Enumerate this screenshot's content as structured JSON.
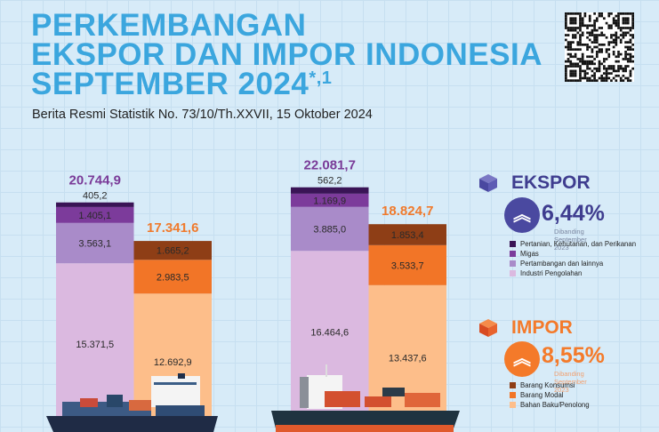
{
  "header": {
    "title_lines": [
      "PERKEMBANGAN",
      "EKSPOR DAN IMPOR INDONESIA",
      "SEPTEMBER 2024"
    ],
    "title_suffix": "*,1",
    "subtitle": "Berita Resmi Statistik No. 73/10/Th.XXVII, 15 Oktober 2024"
  },
  "colors": {
    "title": "#3ba6de",
    "export_total": "#7a3b98",
    "import_total": "#f07a2c",
    "ekspor_accent": "#3f3d8f",
    "impor_accent": "#f47a2a"
  },
  "ekspor": {
    "label": "EKSPOR",
    "change": "6,44%",
    "compare": "Dibanding September 2023",
    "direction": "up"
  },
  "impor": {
    "label": "IMPOR",
    "change": "8,55%",
    "compare": "Dibanding September 2023",
    "direction": "up"
  },
  "chart_data": {
    "type": "stacked-bar",
    "unit": "",
    "groups": [
      {
        "bars": [
          {
            "kind": "ekspor",
            "total": "20.744,9",
            "segments": [
              {
                "name": "Industri Pengolahan",
                "value": 15371.5,
                "label": "15.371,5",
                "color": "#dbb9e0"
              },
              {
                "name": "Pertambangan dan lainnya",
                "value": 3563.1,
                "label": "3.563,1",
                "color": "#a98bc9"
              },
              {
                "name": "Migas",
                "value": 1405.1,
                "label": "1.405,1",
                "color": "#7c3b9b"
              },
              {
                "name": "Pertanian, Kehutanan, dan Perikanan",
                "value": 405.2,
                "label": "405,2",
                "color": "#3a1456"
              }
            ]
          },
          {
            "kind": "impor",
            "total": "17.341,6",
            "segments": [
              {
                "name": "Bahan Baku/Penolong",
                "value": 12692.9,
                "label": "12.692,9",
                "color": "#fdbe8a"
              },
              {
                "name": "Barang Modal",
                "value": 2983.5,
                "label": "2.983,5",
                "color": "#f27527"
              },
              {
                "name": "Barang Konsumsi",
                "value": 1665.2,
                "label": "1.665,2",
                "color": "#8e3e16"
              }
            ]
          }
        ]
      },
      {
        "bars": [
          {
            "kind": "ekspor",
            "total": "22.081,7",
            "segments": [
              {
                "name": "Industri Pengolahan",
                "value": 16464.6,
                "label": "16.464,6",
                "color": "#dbb9e0"
              },
              {
                "name": "Pertambangan dan lainnya",
                "value": 3885.0,
                "label": "3.885,0",
                "color": "#a98bc9"
              },
              {
                "name": "Migas",
                "value": 1169.9,
                "label": "1.169,9",
                "color": "#7c3b9b"
              },
              {
                "name": "Pertanian, Kehutanan, dan Perikanan",
                "value": 562.2,
                "label": "562,2",
                "color": "#3a1456"
              }
            ]
          },
          {
            "kind": "impor",
            "total": "18.824,7",
            "segments": [
              {
                "name": "Bahan Baku/Penolong",
                "value": 13437.6,
                "label": "13.437,6",
                "color": "#fdbe8a"
              },
              {
                "name": "Barang Modal",
                "value": 3533.7,
                "label": "3.533,7",
                "color": "#f27527"
              },
              {
                "name": "Barang Konsumsi",
                "value": 1853.4,
                "label": "1.853,4",
                "color": "#8e3e16"
              }
            ]
          }
        ]
      }
    ],
    "legend": {
      "ekspor": [
        {
          "label": "Pertanian, Kehutanan, dan Perikanan",
          "color": "#3a1456"
        },
        {
          "label": "Migas",
          "color": "#7c3b9b"
        },
        {
          "label": "Pertambangan dan lainnya",
          "color": "#a98bc9"
        },
        {
          "label": "Industri Pengolahan",
          "color": "#dbb9e0"
        }
      ],
      "impor": [
        {
          "label": "Barang Konsumsi",
          "color": "#8e3e16"
        },
        {
          "label": "Barang Modal",
          "color": "#f27527"
        },
        {
          "label": "Bahan Baku/Penolong",
          "color": "#fdbe8a"
        }
      ]
    }
  }
}
